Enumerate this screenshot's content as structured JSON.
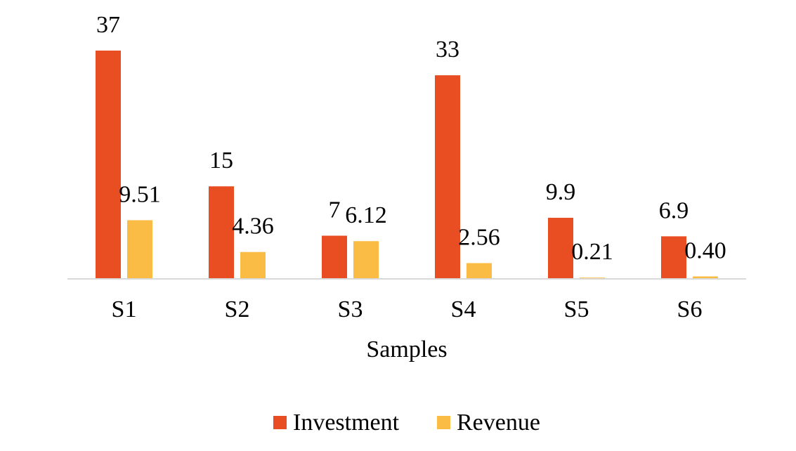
{
  "chart_data": {
    "type": "bar",
    "categories": [
      "S1",
      "S2",
      "S3",
      "S4",
      "S5",
      "S6"
    ],
    "series": [
      {
        "name": "Investment",
        "color": "#E84E22",
        "values": [
          37,
          15,
          7,
          33,
          9.9,
          6.9
        ],
        "labels": [
          "37",
          "15",
          "7",
          "33",
          "9.9",
          "6.9"
        ]
      },
      {
        "name": "Revenue",
        "color": "#FBBC45",
        "values": [
          9.51,
          4.36,
          6.12,
          2.56,
          0.21,
          0.4
        ],
        "labels": [
          "9.51",
          "4.36",
          "6.12",
          "2.56",
          "0.21",
          "0.40"
        ]
      }
    ],
    "xlabel": "Samples",
    "ylabel": "",
    "ylim": [
      0,
      37
    ],
    "grid": false,
    "legend_position": "bottom",
    "axis_color": "#D9D9D9"
  }
}
